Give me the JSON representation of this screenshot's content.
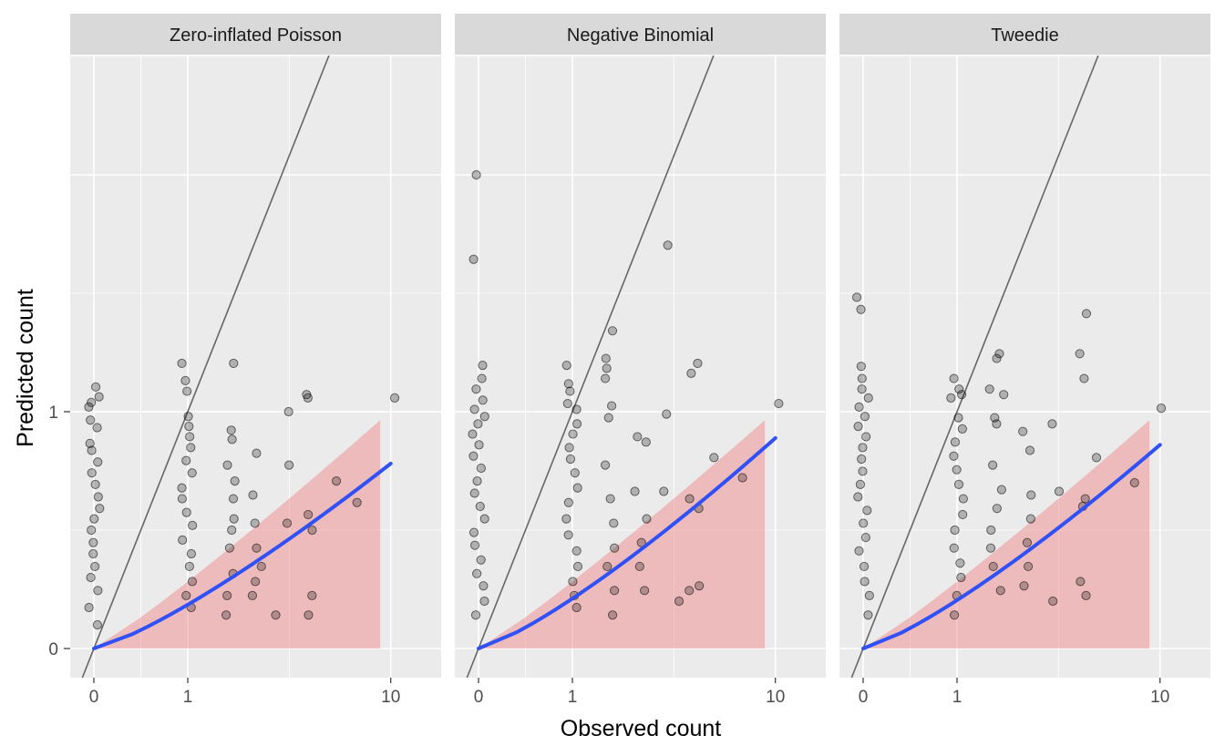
{
  "chart_data": {
    "type": "scatter",
    "xlabel": "Observed count",
    "ylabel": "Predicted count",
    "x_scale": "sqrt",
    "y_scale": "sqrt",
    "x_ticks": [
      {
        "value": 0,
        "label": "0"
      },
      {
        "value": 1,
        "label": "1"
      },
      {
        "value": 10,
        "label": "10"
      }
    ],
    "y_ticks": [
      {
        "value": 0,
        "label": "0"
      },
      {
        "value": 1,
        "label": "1"
      }
    ],
    "xlim": [
      -0.05,
      11
    ],
    "ylim": [
      -0.02,
      4.3
    ],
    "grid": true,
    "legend": "none",
    "colors": {
      "points": "#000000",
      "smooth": "#3050F8",
      "ribbon": "#F08080",
      "identity": "#666666",
      "panel": "#EBEBEB",
      "strip": "#D9D9D9"
    },
    "panels": [
      {
        "title": "Zero-inflated Poisson",
        "ribbon_upper_at_max": 0.93,
        "smooth_end": 0.61,
        "points": [
          [
            0,
            1.22
          ],
          [
            0,
            1.13
          ],
          [
            0,
            1.08
          ],
          [
            0,
            1.04
          ],
          [
            0,
            0.93
          ],
          [
            0,
            0.87
          ],
          [
            0,
            0.75
          ],
          [
            0,
            0.7
          ],
          [
            0,
            0.62
          ],
          [
            0,
            0.55
          ],
          [
            0,
            0.48
          ],
          [
            0,
            0.41
          ],
          [
            0,
            0.35
          ],
          [
            0,
            0.3
          ],
          [
            0,
            0.25
          ],
          [
            0,
            0.2
          ],
          [
            0,
            0.16
          ],
          [
            0,
            0.12
          ],
          [
            0,
            0.09
          ],
          [
            0,
            0.06
          ],
          [
            0,
            0.03
          ],
          [
            0,
            0.01
          ],
          [
            1,
            1.45
          ],
          [
            1,
            1.28
          ],
          [
            1,
            1.18
          ],
          [
            1,
            0.96
          ],
          [
            1,
            0.88
          ],
          [
            1,
            0.8
          ],
          [
            1,
            0.72
          ],
          [
            1,
            0.63
          ],
          [
            1,
            0.55
          ],
          [
            1,
            0.46
          ],
          [
            1,
            0.4
          ],
          [
            1,
            0.33
          ],
          [
            1,
            0.27
          ],
          [
            1,
            0.21
          ],
          [
            1,
            0.16
          ],
          [
            1,
            0.12
          ],
          [
            1,
            0.08
          ],
          [
            1,
            0.05
          ],
          [
            1,
            0.03
          ],
          [
            2.1,
            1.45
          ],
          [
            2.1,
            0.85
          ],
          [
            2.1,
            0.78
          ],
          [
            2.1,
            0.6
          ],
          [
            2.1,
            0.5
          ],
          [
            2.1,
            0.4
          ],
          [
            2.1,
            0.3
          ],
          [
            2.1,
            0.25
          ],
          [
            2.1,
            0.18
          ],
          [
            2.1,
            0.1
          ],
          [
            2.1,
            0.05
          ],
          [
            2.1,
            0.02
          ],
          [
            3.0,
            0.68
          ],
          [
            3.0,
            0.42
          ],
          [
            3.0,
            0.28
          ],
          [
            3.0,
            0.18
          ],
          [
            3.0,
            0.12
          ],
          [
            3.0,
            0.08
          ],
          [
            3.0,
            0.05
          ],
          [
            4.2,
            1.0
          ],
          [
            4.2,
            0.6
          ],
          [
            4.0,
            0.28
          ],
          [
            4.0,
            0.02
          ],
          [
            5.0,
            1.15
          ],
          [
            5.4,
            1.12
          ],
          [
            5.3,
            0.32
          ],
          [
            5.2,
            0.25
          ],
          [
            5.5,
            0.05
          ],
          [
            5.5,
            0.02
          ],
          [
            6.7,
            0.5
          ],
          [
            7.6,
            0.38
          ],
          [
            10.2,
            1.12
          ]
        ]
      },
      {
        "title": "Negative Binomial",
        "ribbon_upper_at_max": 0.93,
        "smooth_end": 0.79,
        "points": [
          [
            0,
            4.0
          ],
          [
            0,
            2.7
          ],
          [
            0,
            1.43
          ],
          [
            0,
            1.3
          ],
          [
            0,
            1.2
          ],
          [
            0,
            1.1
          ],
          [
            0,
            1.02
          ],
          [
            0,
            0.96
          ],
          [
            0,
            0.9
          ],
          [
            0,
            0.82
          ],
          [
            0,
            0.74
          ],
          [
            0,
            0.66
          ],
          [
            0,
            0.58
          ],
          [
            0,
            0.5
          ],
          [
            0,
            0.43
          ],
          [
            0,
            0.36
          ],
          [
            0,
            0.3
          ],
          [
            0,
            0.24
          ],
          [
            0,
            0.19
          ],
          [
            0,
            0.14
          ],
          [
            0,
            0.1
          ],
          [
            0,
            0.07
          ],
          [
            0,
            0.04
          ],
          [
            0,
            0.02
          ],
          [
            1,
            1.43
          ],
          [
            1,
            1.25
          ],
          [
            1,
            1.18
          ],
          [
            1,
            1.07
          ],
          [
            1,
            1.02
          ],
          [
            1,
            0.9
          ],
          [
            1,
            0.82
          ],
          [
            1,
            0.72
          ],
          [
            1,
            0.64
          ],
          [
            1,
            0.55
          ],
          [
            1,
            0.46
          ],
          [
            1,
            0.38
          ],
          [
            1,
            0.3
          ],
          [
            1,
            0.23
          ],
          [
            1,
            0.17
          ],
          [
            1,
            0.12
          ],
          [
            1,
            0.08
          ],
          [
            1,
            0.05
          ],
          [
            1,
            0.03
          ],
          [
            2.1,
            1.8
          ],
          [
            2.0,
            1.5
          ],
          [
            2.0,
            1.4
          ],
          [
            2.0,
            1.3
          ],
          [
            2.0,
            1.05
          ],
          [
            2.0,
            0.95
          ],
          [
            2.0,
            0.6
          ],
          [
            2.0,
            0.4
          ],
          [
            2.0,
            0.28
          ],
          [
            2.0,
            0.18
          ],
          [
            2.0,
            0.12
          ],
          [
            2.0,
            0.06
          ],
          [
            2.0,
            0.02
          ],
          [
            3.0,
            0.8
          ],
          [
            3.0,
            0.76
          ],
          [
            3.0,
            0.44
          ],
          [
            3.0,
            0.3
          ],
          [
            3.0,
            0.2
          ],
          [
            3.0,
            0.12
          ],
          [
            3.0,
            0.06
          ],
          [
            4.3,
            2.9
          ],
          [
            4.2,
            0.98
          ],
          [
            4.1,
            0.44
          ],
          [
            4.3,
            0.04
          ],
          [
            5.0,
            1.35
          ],
          [
            5.5,
            1.45
          ],
          [
            5.0,
            0.4
          ],
          [
            5.5,
            0.35
          ],
          [
            5.3,
            0.06
          ],
          [
            5.6,
            0.07
          ],
          [
            6.0,
            0.65
          ],
          [
            7.9,
            0.52
          ],
          [
            10.0,
            1.07
          ]
        ]
      },
      {
        "title": "Tweedie",
        "ribbon_upper_at_max": 0.93,
        "smooth_end": 0.74,
        "points": [
          [
            0,
            2.2
          ],
          [
            0,
            2.05
          ],
          [
            0,
            1.42
          ],
          [
            0,
            1.3
          ],
          [
            0,
            1.2
          ],
          [
            0,
            1.12
          ],
          [
            0,
            1.04
          ],
          [
            0,
            0.96
          ],
          [
            0,
            0.88
          ],
          [
            0,
            0.8
          ],
          [
            0,
            0.72
          ],
          [
            0,
            0.64
          ],
          [
            0,
            0.56
          ],
          [
            0,
            0.48
          ],
          [
            0,
            0.41
          ],
          [
            0,
            0.34
          ],
          [
            0,
            0.28
          ],
          [
            0,
            0.22
          ],
          [
            0,
            0.17
          ],
          [
            0,
            0.12
          ],
          [
            0,
            0.08
          ],
          [
            0,
            0.05
          ],
          [
            0,
            0.02
          ],
          [
            1,
            1.3
          ],
          [
            1,
            1.2
          ],
          [
            1,
            1.15
          ],
          [
            1,
            1.12
          ],
          [
            1,
            0.95
          ],
          [
            1,
            0.86
          ],
          [
            1,
            0.76
          ],
          [
            1,
            0.66
          ],
          [
            1,
            0.57
          ],
          [
            1,
            0.48
          ],
          [
            1,
            0.4
          ],
          [
            1,
            0.32
          ],
          [
            1,
            0.25
          ],
          [
            1,
            0.18
          ],
          [
            1,
            0.13
          ],
          [
            1,
            0.09
          ],
          [
            1,
            0.05
          ],
          [
            1,
            0.02
          ],
          [
            2.1,
            1.55
          ],
          [
            2.2,
            1.5
          ],
          [
            2.0,
            1.2
          ],
          [
            2.1,
            1.15
          ],
          [
            2.0,
            0.95
          ],
          [
            2.1,
            0.9
          ],
          [
            2.0,
            0.6
          ],
          [
            2.0,
            0.45
          ],
          [
            2.0,
            0.35
          ],
          [
            2.0,
            0.25
          ],
          [
            2.0,
            0.18
          ],
          [
            2.0,
            0.12
          ],
          [
            2.0,
            0.06
          ],
          [
            3.0,
            0.84
          ],
          [
            3.0,
            0.7
          ],
          [
            3.0,
            0.42
          ],
          [
            3.0,
            0.3
          ],
          [
            3.0,
            0.2
          ],
          [
            3.0,
            0.12
          ],
          [
            3.0,
            0.07
          ],
          [
            4.3,
            0.9
          ],
          [
            4.3,
            0.44
          ],
          [
            4.3,
            0.04
          ],
          [
            5.6,
            2.0
          ],
          [
            5.6,
            1.55
          ],
          [
            5.5,
            1.3
          ],
          [
            5.4,
            0.36
          ],
          [
            5.6,
            0.4
          ],
          [
            5.6,
            0.08
          ],
          [
            5.6,
            0.05
          ],
          [
            6.3,
            0.65
          ],
          [
            8.6,
            0.49
          ],
          [
            9.8,
            1.03
          ]
        ]
      }
    ]
  }
}
